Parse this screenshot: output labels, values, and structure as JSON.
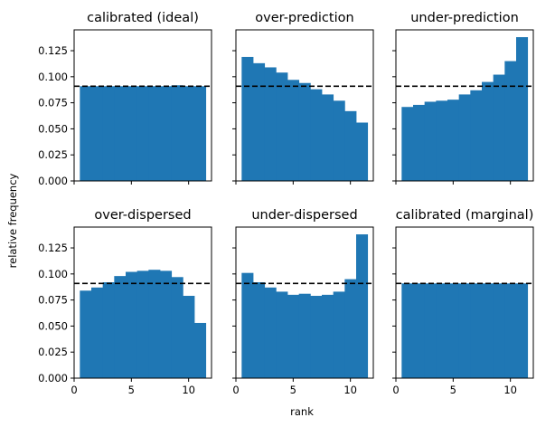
{
  "figure": {
    "xlabel": "rank",
    "ylabel": "relative frequency"
  },
  "colors": {
    "bar": "#1f77b4",
    "reference_line": "#000000"
  },
  "chart_data": [
    {
      "type": "bar",
      "title": "calibrated (ideal)",
      "x": [
        1,
        2,
        3,
        4,
        5,
        6,
        7,
        8,
        9,
        10,
        11
      ],
      "values": [
        0.0909,
        0.0909,
        0.0909,
        0.0909,
        0.0909,
        0.0909,
        0.0909,
        0.0909,
        0.0918,
        0.0909,
        0.0909
      ],
      "reference": 0.0909,
      "xlim": [
        0,
        12
      ],
      "ylim": [
        0,
        0.145
      ],
      "xticks": [
        "0",
        "5",
        "10"
      ],
      "yticks": [
        "0.000",
        "0.025",
        "0.050",
        "0.075",
        "0.100",
        "0.125"
      ]
    },
    {
      "type": "bar",
      "title": "over-prediction",
      "x": [
        1,
        2,
        3,
        4,
        5,
        6,
        7,
        8,
        9,
        10,
        11
      ],
      "values": [
        0.119,
        0.113,
        0.109,
        0.104,
        0.097,
        0.094,
        0.088,
        0.083,
        0.077,
        0.067,
        0.056
      ],
      "reference": 0.0909,
      "xlim": [
        0,
        12
      ],
      "ylim": [
        0,
        0.145
      ],
      "xticks": [
        "0",
        "5",
        "10"
      ],
      "yticks": [
        "0.000",
        "0.025",
        "0.050",
        "0.075",
        "0.100",
        "0.125"
      ]
    },
    {
      "type": "bar",
      "title": "under-prediction",
      "x": [
        1,
        2,
        3,
        4,
        5,
        6,
        7,
        8,
        9,
        10,
        11
      ],
      "values": [
        0.071,
        0.073,
        0.076,
        0.077,
        0.078,
        0.083,
        0.087,
        0.095,
        0.102,
        0.115,
        0.138
      ],
      "reference": 0.0909,
      "xlim": [
        0,
        12
      ],
      "ylim": [
        0,
        0.145
      ],
      "xticks": [
        "0",
        "5",
        "10"
      ],
      "yticks": [
        "0.000",
        "0.025",
        "0.050",
        "0.075",
        "0.100",
        "0.125"
      ]
    },
    {
      "type": "bar",
      "title": "over-dispersed",
      "x": [
        1,
        2,
        3,
        4,
        5,
        6,
        7,
        8,
        9,
        10,
        11
      ],
      "values": [
        0.084,
        0.087,
        0.092,
        0.098,
        0.102,
        0.103,
        0.104,
        0.103,
        0.097,
        0.079,
        0.053
      ],
      "reference": 0.0909,
      "xlim": [
        0,
        12
      ],
      "ylim": [
        0,
        0.145
      ],
      "xticks": [
        "0",
        "5",
        "10"
      ],
      "yticks": [
        "0.000",
        "0.025",
        "0.050",
        "0.075",
        "0.100",
        "0.125"
      ]
    },
    {
      "type": "bar",
      "title": "under-dispersed",
      "x": [
        1,
        2,
        3,
        4,
        5,
        6,
        7,
        8,
        9,
        10,
        11
      ],
      "values": [
        0.101,
        0.092,
        0.087,
        0.083,
        0.08,
        0.081,
        0.079,
        0.08,
        0.083,
        0.095,
        0.138
      ],
      "reference": 0.0909,
      "xlim": [
        0,
        12
      ],
      "ylim": [
        0,
        0.145
      ],
      "xticks": [
        "0",
        "5",
        "10"
      ],
      "yticks": [
        "0.000",
        "0.025",
        "0.050",
        "0.075",
        "0.100",
        "0.125"
      ]
    },
    {
      "type": "bar",
      "title": "calibrated (marginal)",
      "x": [
        1,
        2,
        3,
        4,
        5,
        6,
        7,
        8,
        9,
        10,
        11
      ],
      "values": [
        0.0909,
        0.0909,
        0.0909,
        0.0909,
        0.0909,
        0.0909,
        0.0909,
        0.0909,
        0.0909,
        0.0909,
        0.0909
      ],
      "reference": 0.0909,
      "xlim": [
        0,
        12
      ],
      "ylim": [
        0,
        0.145
      ],
      "xticks": [
        "0",
        "5",
        "10"
      ],
      "yticks": [
        "0.000",
        "0.025",
        "0.050",
        "0.075",
        "0.100",
        "0.125"
      ]
    }
  ]
}
